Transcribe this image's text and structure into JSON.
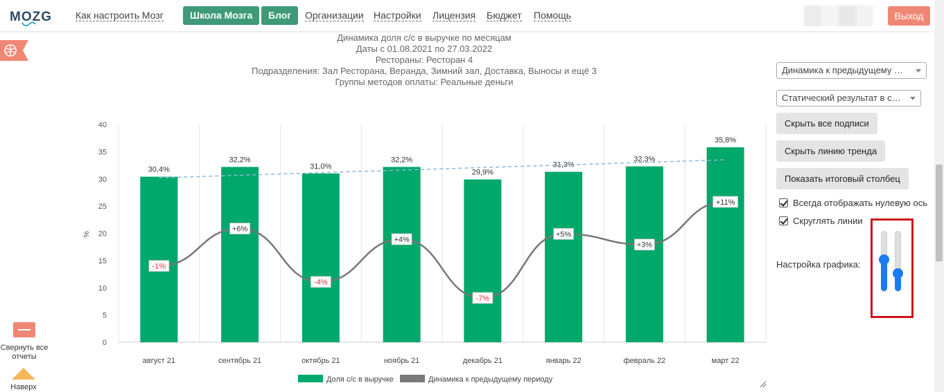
{
  "header": {
    "logo_text": "MOZG",
    "nav_links": [
      "Как настроить Мозг"
    ],
    "buttons": [
      "Школа Мозга",
      "Блог"
    ],
    "nav_links2": [
      "Организации",
      "Настройки",
      "Лицензия",
      "Бюджет",
      "Помощь"
    ],
    "logout_label": "Выход"
  },
  "left_panel": {
    "collapse_label": "Свернуть все отчеты",
    "top_label": "Наверх"
  },
  "chart_title_lines": [
    "Динамика доля с/с в выручке по месяцам",
    "Даты с 01.08.2021 по 27.03.2022",
    "Рестораны: Ресторан 4",
    "Подразделения: Зал Ресторана, Веранда, Зимний зал, Доставка, Выносы и ещё 3",
    "Группы методов оплаты: Реальные деньги"
  ],
  "chart_data": {
    "type": "bar",
    "categories": [
      "август 21",
      "сентябрь 21",
      "октябрь 21",
      "ноябрь 21",
      "декабрь 21",
      "январь 22",
      "февраль 22",
      "март 22"
    ],
    "series": [
      {
        "name": "Доля с/с в выручке",
        "type": "bar",
        "values": [
          30.4,
          32.2,
          31.0,
          32.2,
          29.9,
          31.3,
          32.3,
          35.8
        ],
        "labels": [
          "30,4%",
          "32,2%",
          "31,0%",
          "32,2%",
          "29,9%",
          "31,3%",
          "32,3%",
          "35,8%"
        ],
        "color": "#00a86b"
      },
      {
        "name": "Динамика к предыдущему периоду",
        "type": "line",
        "values": [
          -1,
          6,
          -4,
          4,
          -7,
          5,
          3,
          11
        ],
        "labels": [
          "-1%",
          "+6%",
          "-4%",
          "+4%",
          "-7%",
          "+5%",
          "+3%",
          "+11%"
        ],
        "color": "#777777",
        "plot_scale": {
          "anchor_value": 0,
          "anchor_y": 15,
          "step_value": 1,
          "step_y": 0.98
        }
      }
    ],
    "trend_line": {
      "from": 30.2,
      "to": 33.5,
      "color": "#8fb7d6"
    },
    "ylabel": "%",
    "yticks": [
      "0",
      "5",
      "10",
      "15",
      "20",
      "25",
      "30",
      "35",
      "40"
    ],
    "ylim": [
      0,
      40
    ],
    "legend_position": "bottom-center",
    "colors": {
      "positive": "#333333",
      "negative": "#e0303a"
    }
  },
  "right_panel": {
    "select1": "Динамика к предыдущему периоду",
    "select2": "Статический результат в столбцах",
    "btn_hide_labels": "Скрыть все подписи",
    "btn_hide_trend": "Скрыть линию тренда",
    "btn_show_total": "Показать итоговый столбец",
    "check_zero_axis": "Всегда отображать нулевую ось",
    "check_smooth": "Скруглять линии",
    "settings_label": "Настройка графика:",
    "slider1_level": 0.54,
    "slider2_level": 0.3
  }
}
